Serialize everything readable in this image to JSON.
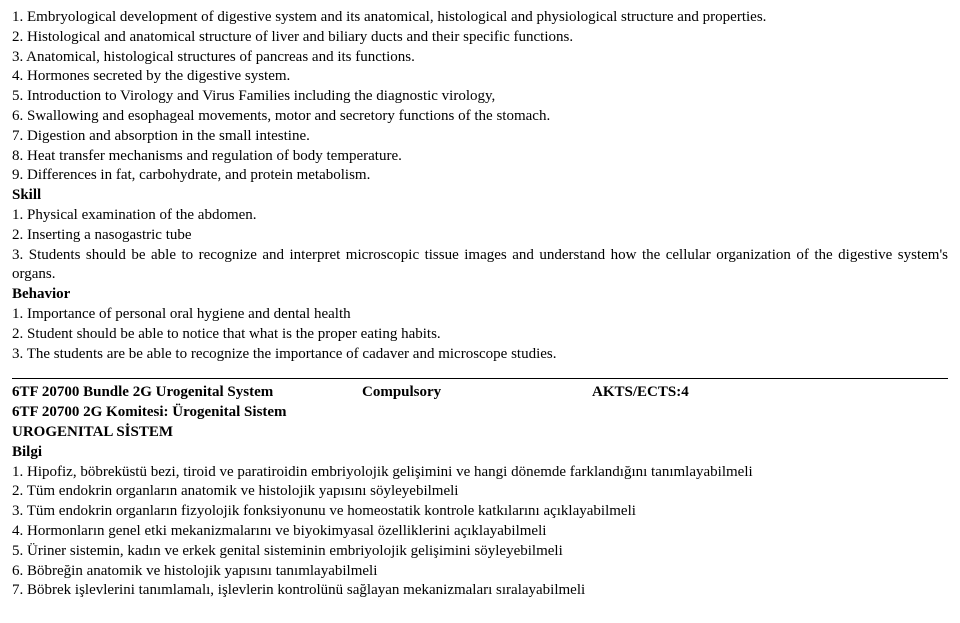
{
  "top": {
    "items": [
      "1. Embryological development of digestive system and its anatomical, histological and physiological structure and properties.",
      "2. Histological and anatomical structure of liver and biliary ducts and their specific functions.",
      "3. Anatomical, histological structures of pancreas and its functions.",
      "4. Hormones secreted by the digestive system.",
      "5. Introduction to Virology and Virus Families including the diagnostic virology,",
      "6. Swallowing and esophageal movements, motor and secretory functions of the stomach.",
      "7. Digestion and absorption in the small intestine.",
      "8. Heat transfer mechanisms and regulation of body temperature.",
      "9. Differences in fat, carbohydrate, and protein metabolism."
    ],
    "skill_heading": "Skill",
    "skill_items": [
      "1. Physical examination of the abdomen.",
      "2. Inserting a nasogastric tube",
      "3. Students should be able to recognize and interpret microscopic tissue images and understand how the cellular organization of the digestive system's organs."
    ],
    "behavior_heading": "Behavior",
    "behavior_items": [
      "1. Importance of personal oral hygiene and dental health",
      "2. Student should be able to notice that what is the proper eating habits.",
      "3. The students are be able to recognize the importance of cadaver and microscope studies."
    ]
  },
  "course": {
    "code_title": "6TF 20700  Bundle  2G  Urogenital System",
    "type": "Compulsory",
    "ects": "AKTS/ECTS:4",
    "subtitle": "6TF 20700 2G Komitesi: Ürogenital Sistem",
    "caps": "UROGENITAL SİSTEM",
    "bilgi_heading": "Bilgi",
    "bilgi_items": [
      "1. Hipofiz, böbreküstü bezi, tiroid ve paratiroidin embriyolojik gelişimini ve hangi dönemde farklandığını tanımlayabilmeli",
      "2. Tüm endokrin organların anatomik ve histolojik yapısını söyleyebilmeli",
      "3. Tüm endokrin organların fizyolojik fonksiyonunu ve homeostatik kontrole katkılarını açıklayabilmeli",
      "4. Hormonların genel etki mekanizmalarını ve biyokimyasal özelliklerini açıklayabilmeli",
      "5. Üriner sistemin, kadın ve erkek genital sisteminin embriyolojik gelişimini söyleyebilmeli",
      "6. Böbreğin anatomik ve histolojik yapısını tanımlayabilmeli",
      "7. Böbrek işlevlerini tanımlamalı, işlevlerin kontrolünü sağlayan mekanizmaları sıralayabilmeli"
    ]
  }
}
